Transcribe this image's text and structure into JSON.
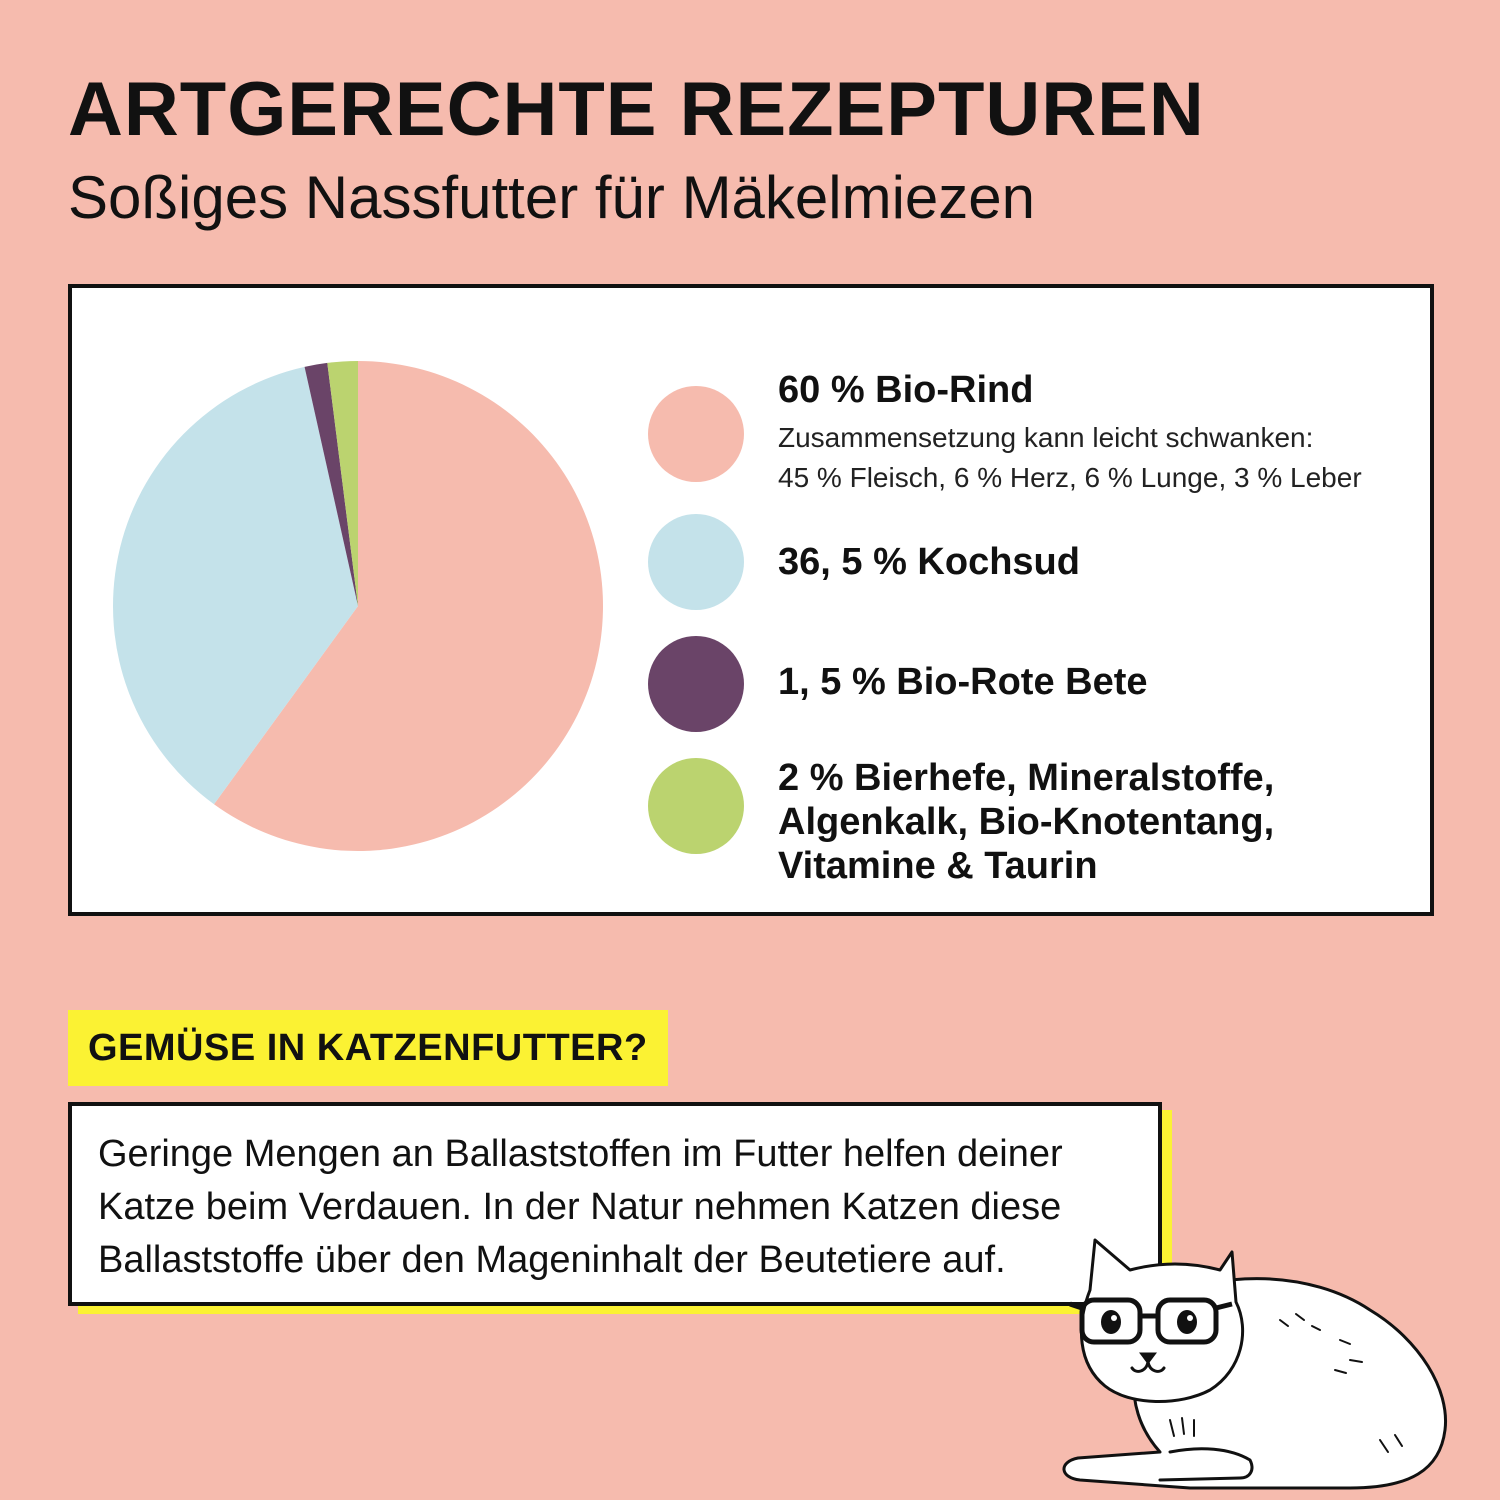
{
  "header": {
    "title": "ARTGERECHTE REZEPTUREN",
    "subtitle": "Soßiges Nassfutter für Mäkelmiezen"
  },
  "chart_data": {
    "type": "pie",
    "title": "",
    "slices": [
      {
        "name": "Bio-Rind",
        "value": 60,
        "color": "#f6bbae"
      },
      {
        "name": "Kochsud",
        "value": 36.5,
        "color": "#c4e2ea"
      },
      {
        "name": "Bio-Rote Bete",
        "value": 1.5,
        "color": "#6a4468"
      },
      {
        "name": "Bierhefe, Mineralstoffe, Algenkalk, Bio-Knotentang, Vitamine & Taurin",
        "value": 2,
        "color": "#bbd36f"
      }
    ],
    "legend": [
      {
        "label": "60 % Bio-Rind",
        "note_line1": "Zusammensetzung kann leicht schwanken:",
        "note_line2": "45 % Fleisch, 6 % Herz, 6 % Lunge, 3 % Leber",
        "color": "#f6bbae"
      },
      {
        "label": "36, 5 % Kochsud",
        "color": "#c4e2ea"
      },
      {
        "label": "1, 5 % Bio-Rote Bete",
        "color": "#6a4468"
      },
      {
        "label_line1": "2 % Bierhefe, Mineralstoffe,",
        "label_line2": "Algenkalk, Bio-Knotentang,",
        "label_line3": "Vitamine & Taurin",
        "color": "#bbd36f"
      }
    ],
    "legend_position": "right"
  },
  "info": {
    "heading": "GEMÜSE IN KATZENFUTTER?",
    "line1": "Geringe Mengen an Ballaststoffen im Futter helfen deiner",
    "line2": "Katze beim Verdauen. In der Natur nehmen Katzen diese",
    "line3": "Ballaststoffe über den Mageninhalt der Beutetiere auf."
  },
  "illustration": {
    "icon": "cat-with-glasses-icon"
  }
}
